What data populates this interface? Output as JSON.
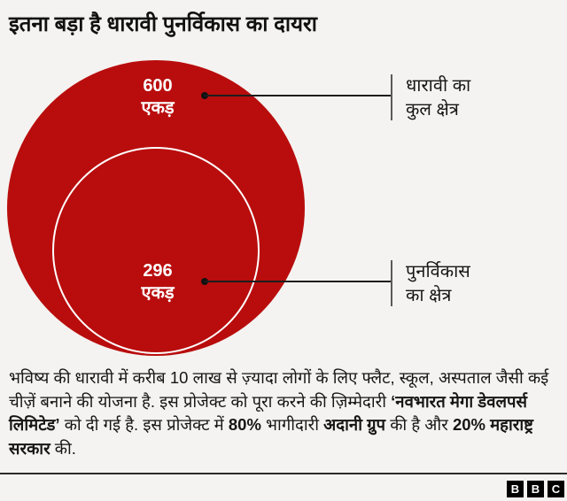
{
  "meta": {
    "background_color": "#f4f3f1",
    "accent_red": "#b90d0d",
    "text_color": "#161616",
    "callout_line_color": "#1d1d1d",
    "tick_color": "#5a5a5a"
  },
  "title": "इतना बड़ा है धारावी पुनर्विकास का दायरा",
  "chart": {
    "outer_value": "600",
    "outer_unit": "एकड़",
    "inner_value": "296",
    "inner_unit": "एकड़",
    "outer_label_line1": "धारावी का",
    "outer_label_line2": "कुल क्षेत्र",
    "inner_label_line1": "पुनर्विकास",
    "inner_label_line2": "का क्षेत्र"
  },
  "chart_data": {
    "type": "nested-circles",
    "title": "इतना बड़ा है धारावी पुनर्विकास का दायरा",
    "categories": [
      "धारावी का कुल क्षेत्र",
      "पुनर्विकास का क्षेत्र"
    ],
    "values": [
      600,
      296
    ],
    "unit": "एकड़",
    "value_labels": [
      "600 एकड़",
      "296 एकड़"
    ],
    "colors": [
      "#b90d0d",
      "#b90d0d"
    ],
    "layout": "inner circle outlined in white, nested inside and bottom-tangent to outer solid red circle; areas proportional to values; callout lines with dots point to labels on the right",
    "legend_position": "right"
  },
  "paragraph": {
    "segments": [
      {
        "text": "भविष्य की धारावी में करीब 10 लाख से ज़्यादा लोगों के लिए फ्लैट, स्कूल, अस्पताल जैसी कई चीज़ें बनाने की योजना है. इस प्रोजेक्ट को पूरा करने की ज़िम्मेदारी ",
        "bold": false
      },
      {
        "text": "‘नवभारत मेगा डेवलपर्स लिमिटेड’",
        "bold": true
      },
      {
        "text": " को दी गई है. इस प्रोजेक्ट में ",
        "bold": false
      },
      {
        "text": "80%",
        "bold": true
      },
      {
        "text": " भागीदारी ",
        "bold": false
      },
      {
        "text": "अदानी ग्रुप",
        "bold": true
      },
      {
        "text": " की है और ",
        "bold": false
      },
      {
        "text": "20% महाराष्ट्र सरकार",
        "bold": true
      },
      {
        "text": " की.",
        "bold": false
      }
    ]
  },
  "footer": {
    "logo_letters": [
      "B",
      "B",
      "C"
    ]
  }
}
